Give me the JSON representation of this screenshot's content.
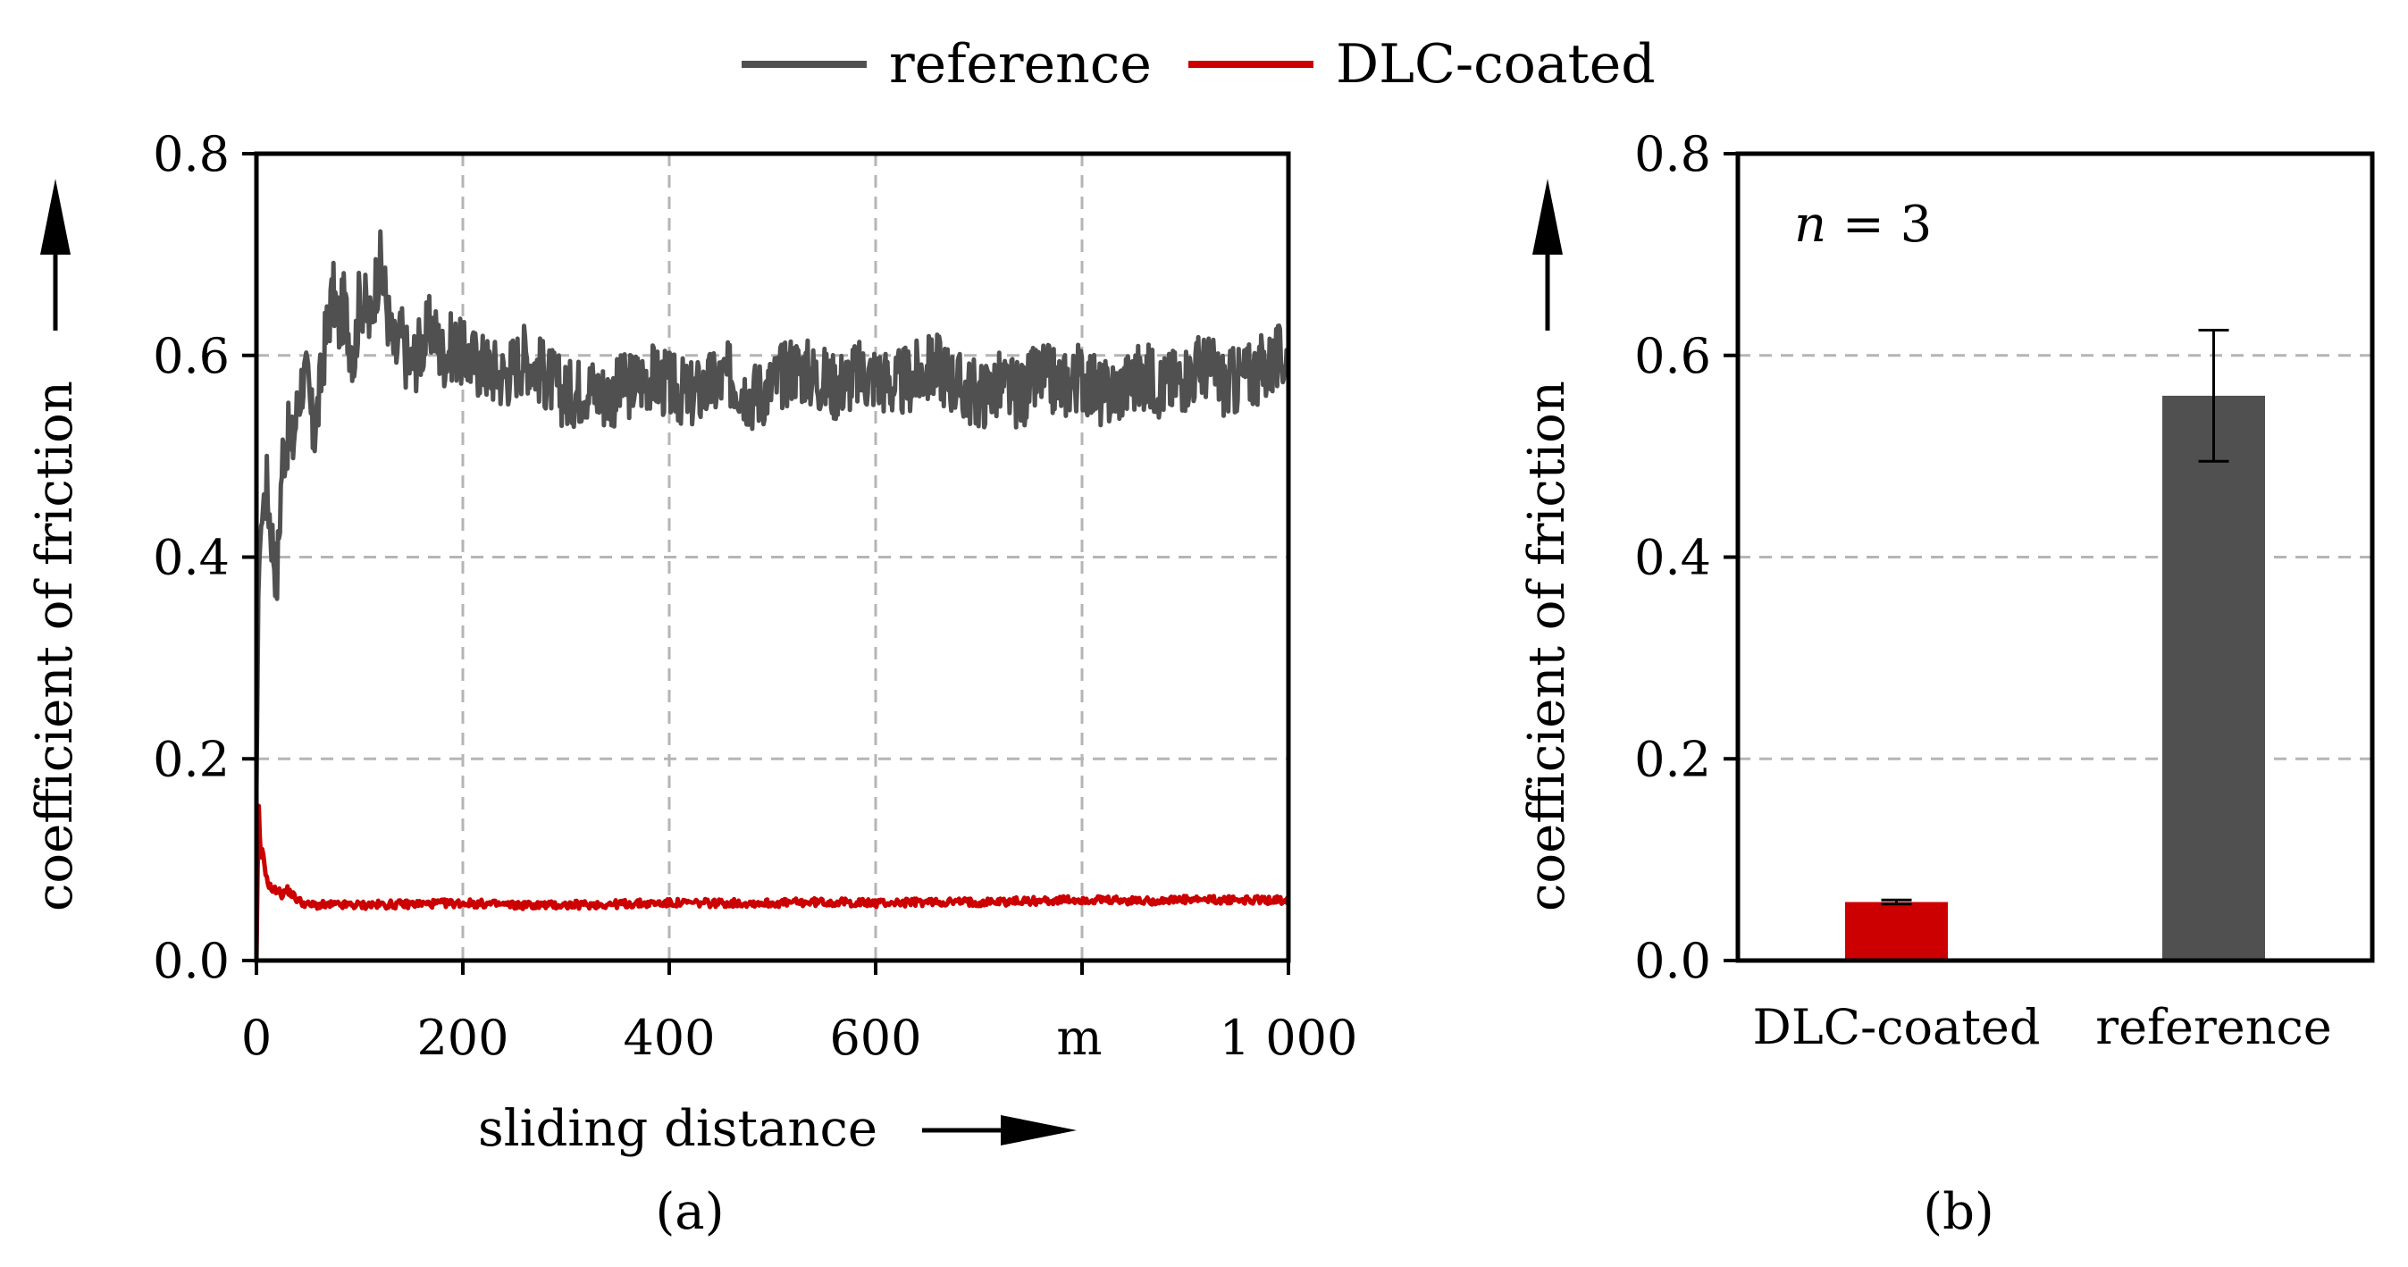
{
  "legend": [
    {
      "label": "reference",
      "color": "#505050"
    },
    {
      "label": "DLC-coated",
      "color": "#cc0000"
    }
  ],
  "chart_data": [
    {
      "type": "line",
      "panel_label": "(a)",
      "xlabel": "sliding distance",
      "ylabel": "coefficient of friction",
      "x_unit": "m",
      "xlim": [
        0,
        1000
      ],
      "ylim": [
        0,
        0.8
      ],
      "x_ticks": [
        {
          "value": 0,
          "label": "0"
        },
        {
          "value": 200,
          "label": "200"
        },
        {
          "value": 400,
          "label": "400"
        },
        {
          "value": 600,
          "label": "600"
        },
        {
          "value": 1000,
          "label": "1 000"
        }
      ],
      "y_ticks": [
        {
          "value": 0.0,
          "label": "0.0"
        },
        {
          "value": 0.2,
          "label": "0.2"
        },
        {
          "value": 0.4,
          "label": "0.4"
        },
        {
          "value": 0.6,
          "label": "0.6"
        },
        {
          "value": 0.8,
          "label": "0.8"
        }
      ],
      "grid": true,
      "series": [
        {
          "name": "reference",
          "color": "#505050",
          "x": [
            0,
            2,
            5,
            10,
            15,
            20,
            25,
            30,
            35,
            40,
            45,
            50,
            55,
            60,
            65,
            70,
            75,
            80,
            85,
            90,
            95,
            100,
            105,
            110,
            115,
            120,
            125,
            130,
            135,
            140,
            145,
            150,
            160,
            170,
            180,
            190,
            200,
            220,
            240,
            260,
            280,
            300,
            320,
            340,
            360,
            380,
            400,
            420,
            440,
            460,
            480,
            500,
            520,
            540,
            560,
            580,
            600,
            620,
            640,
            660,
            680,
            700,
            720,
            740,
            760,
            780,
            800,
            820,
            840,
            860,
            880,
            900,
            920,
            940,
            960,
            980,
            1000
          ],
          "y": [
            0.17,
            0.38,
            0.44,
            0.47,
            0.42,
            0.38,
            0.5,
            0.52,
            0.51,
            0.55,
            0.58,
            0.57,
            0.52,
            0.55,
            0.6,
            0.64,
            0.66,
            0.63,
            0.65,
            0.62,
            0.6,
            0.66,
            0.65,
            0.63,
            0.67,
            0.69,
            0.66,
            0.62,
            0.6,
            0.62,
            0.6,
            0.59,
            0.61,
            0.63,
            0.6,
            0.61,
            0.6,
            0.59,
            0.58,
            0.6,
            0.58,
            0.56,
            0.57,
            0.56,
            0.57,
            0.58,
            0.57,
            0.56,
            0.57,
            0.58,
            0.56,
            0.57,
            0.59,
            0.58,
            0.57,
            0.58,
            0.58,
            0.57,
            0.58,
            0.59,
            0.57,
            0.56,
            0.57,
            0.56,
            0.58,
            0.57,
            0.58,
            0.56,
            0.57,
            0.58,
            0.57,
            0.58,
            0.59,
            0.57,
            0.58,
            0.59,
            0.6
          ]
        },
        {
          "name": "DLC-coated",
          "color": "#cc0000",
          "x": [
            0,
            2,
            4,
            6,
            10,
            15,
            20,
            25,
            30,
            40,
            50,
            60,
            70,
            80,
            100,
            150,
            200,
            250,
            300,
            350,
            400,
            450,
            500,
            550,
            600,
            650,
            700,
            750,
            800,
            850,
            900,
            950,
            1000
          ],
          "y": [
            0.0,
            0.16,
            0.1,
            0.11,
            0.08,
            0.07,
            0.07,
            0.065,
            0.07,
            0.06,
            0.055,
            0.055,
            0.055,
            0.055,
            0.055,
            0.056,
            0.057,
            0.055,
            0.055,
            0.056,
            0.057,
            0.057,
            0.057,
            0.058,
            0.057,
            0.058,
            0.058,
            0.059,
            0.06,
            0.059,
            0.06,
            0.06,
            0.06
          ]
        }
      ]
    },
    {
      "type": "bar",
      "panel_label": "(b)",
      "ylabel": "coefficient of friction",
      "annotation": {
        "italic": "n",
        "rest": " = 3"
      },
      "ylim": [
        0,
        0.8
      ],
      "y_ticks": [
        {
          "value": 0.0,
          "label": "0.0"
        },
        {
          "value": 0.2,
          "label": "0.2"
        },
        {
          "value": 0.4,
          "label": "0.4"
        },
        {
          "value": 0.6,
          "label": "0.6"
        },
        {
          "value": 0.8,
          "label": "0.8"
        }
      ],
      "grid": true,
      "categories": [
        "DLC-coated",
        "reference"
      ],
      "values": [
        0.058,
        0.56
      ],
      "errors": [
        0.002,
        0.065
      ],
      "colors": [
        "#cc0000",
        "#505050"
      ]
    }
  ]
}
